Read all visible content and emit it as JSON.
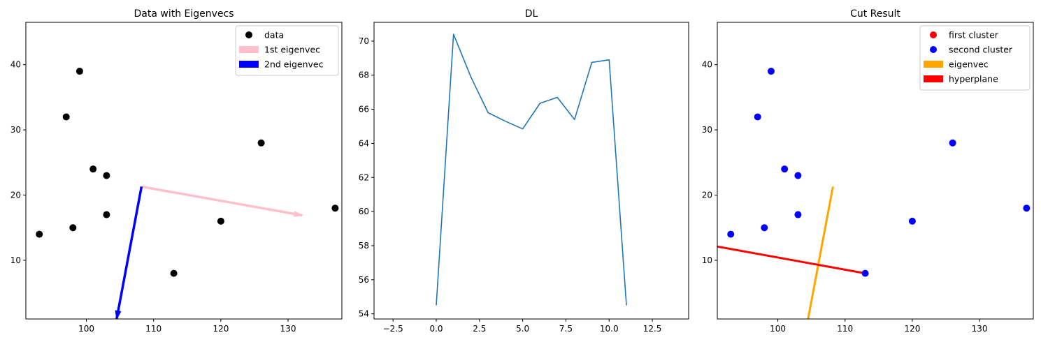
{
  "chart_data": [
    {
      "type": "scatter",
      "title": "Data with Eigenvecs",
      "xlim": [
        91,
        138
      ],
      "ylim": [
        1,
        46.5
      ],
      "xticks": [
        100,
        110,
        120,
        130
      ],
      "yticks": [
        10,
        20,
        30,
        40
      ],
      "legend_position": "upper right",
      "points": [
        [
          93,
          14
        ],
        [
          97,
          32
        ],
        [
          98,
          15
        ],
        [
          99,
          39
        ],
        [
          101,
          24
        ],
        [
          103,
          23
        ],
        [
          103,
          17
        ],
        [
          113,
          8
        ],
        [
          120,
          16
        ],
        [
          126,
          28
        ],
        [
          137,
          18
        ]
      ],
      "point_color": "#000000",
      "arrows": [
        {
          "from": [
            108.2,
            21.3
          ],
          "to": [
            132.1,
            16.9
          ],
          "color": "#ffc0cb"
        },
        {
          "from": [
            108.2,
            21.3
          ],
          "to": [
            104.5,
            1
          ],
          "color": "#0000ff"
        }
      ],
      "legend": [
        {
          "label": "data",
          "kind": "dot",
          "color": "#000000"
        },
        {
          "label": "1st eigenvec",
          "kind": "patch",
          "color": "#ffc0cb"
        },
        {
          "label": "2nd eigenvec",
          "kind": "patch",
          "color": "#0000ff"
        }
      ]
    },
    {
      "type": "line",
      "title": "DL",
      "xlim": [
        -3.6,
        14.6
      ],
      "ylim": [
        53.7,
        71.1
      ],
      "xticks": [
        -2.5,
        0.0,
        2.5,
        5.0,
        7.5,
        10.0,
        12.5
      ],
      "xticklabels": [
        "−2.5",
        "0.0",
        "2.5",
        "5.0",
        "7.5",
        "10.0",
        "12.5"
      ],
      "yticks": [
        54,
        56,
        58,
        60,
        62,
        64,
        66,
        68,
        70
      ],
      "series": [
        {
          "color": "#1f77b4",
          "x": [
            0,
            1,
            2,
            3,
            4,
            5,
            6,
            7,
            8,
            9,
            10,
            11
          ],
          "y": [
            54.5,
            70.4,
            67.9,
            65.8,
            65.3,
            64.85,
            66.35,
            66.7,
            65.4,
            68.75,
            68.9,
            54.5
          ]
        }
      ]
    },
    {
      "type": "scatter",
      "title": "Cut Result",
      "xlim": [
        91,
        138
      ],
      "ylim": [
        1,
        46.5
      ],
      "xticks": [
        100,
        110,
        120,
        130
      ],
      "yticks": [
        10,
        20,
        30,
        40
      ],
      "legend_position": "upper right",
      "points": [
        [
          93,
          14
        ],
        [
          97,
          32
        ],
        [
          98,
          15
        ],
        [
          99,
          39
        ],
        [
          101,
          24
        ],
        [
          103,
          23
        ],
        [
          103,
          17
        ],
        [
          113,
          8
        ],
        [
          120,
          16
        ],
        [
          126,
          28
        ],
        [
          137,
          18
        ]
      ],
      "point_color": "#0000ff",
      "lines": [
        {
          "from": [
            108.2,
            21.3
          ],
          "to": [
            104.5,
            1
          ],
          "color": "#ffa500"
        },
        {
          "from": [
            90.5,
            12.2
          ],
          "to": [
            113,
            8
          ],
          "color": "#ff0000"
        }
      ],
      "legend": [
        {
          "label": "first cluster",
          "kind": "dot",
          "color": "#ff0000"
        },
        {
          "label": "second cluster",
          "kind": "dot",
          "color": "#0000ff"
        },
        {
          "label": "eigenvec",
          "kind": "patch",
          "color": "#ffa500"
        },
        {
          "label": "hyperplane",
          "kind": "patch",
          "color": "#ff0000"
        }
      ]
    }
  ]
}
